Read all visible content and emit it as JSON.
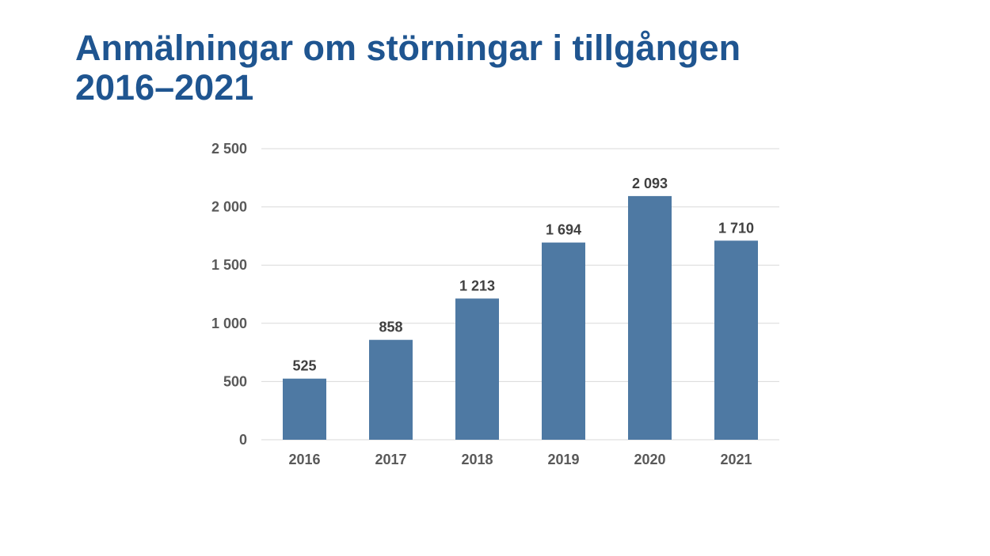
{
  "slide": {
    "title_line1": "Anmälningar om störningar i tillgången",
    "title_line2": "2016–2021"
  },
  "chart_data": {
    "type": "bar",
    "title": "",
    "xlabel": "",
    "ylabel": "",
    "categories": [
      "2016",
      "2017",
      "2018",
      "2019",
      "2020",
      "2021"
    ],
    "values": [
      525,
      858,
      1213,
      1694,
      2093,
      1710
    ],
    "data_labels": [
      "525",
      "858",
      "1 213",
      "1 694",
      "2 093",
      "1 710"
    ],
    "ylim": [
      0,
      2500
    ],
    "yticks": [
      0,
      500,
      1000,
      1500,
      2000,
      2500
    ],
    "ytick_labels": [
      "0",
      "500",
      "1 000",
      "1 500",
      "2 000",
      "2 500"
    ],
    "grid": true,
    "legend": "none",
    "bar_color": "#4e79a3",
    "grid_color": "#d9d9d9"
  }
}
